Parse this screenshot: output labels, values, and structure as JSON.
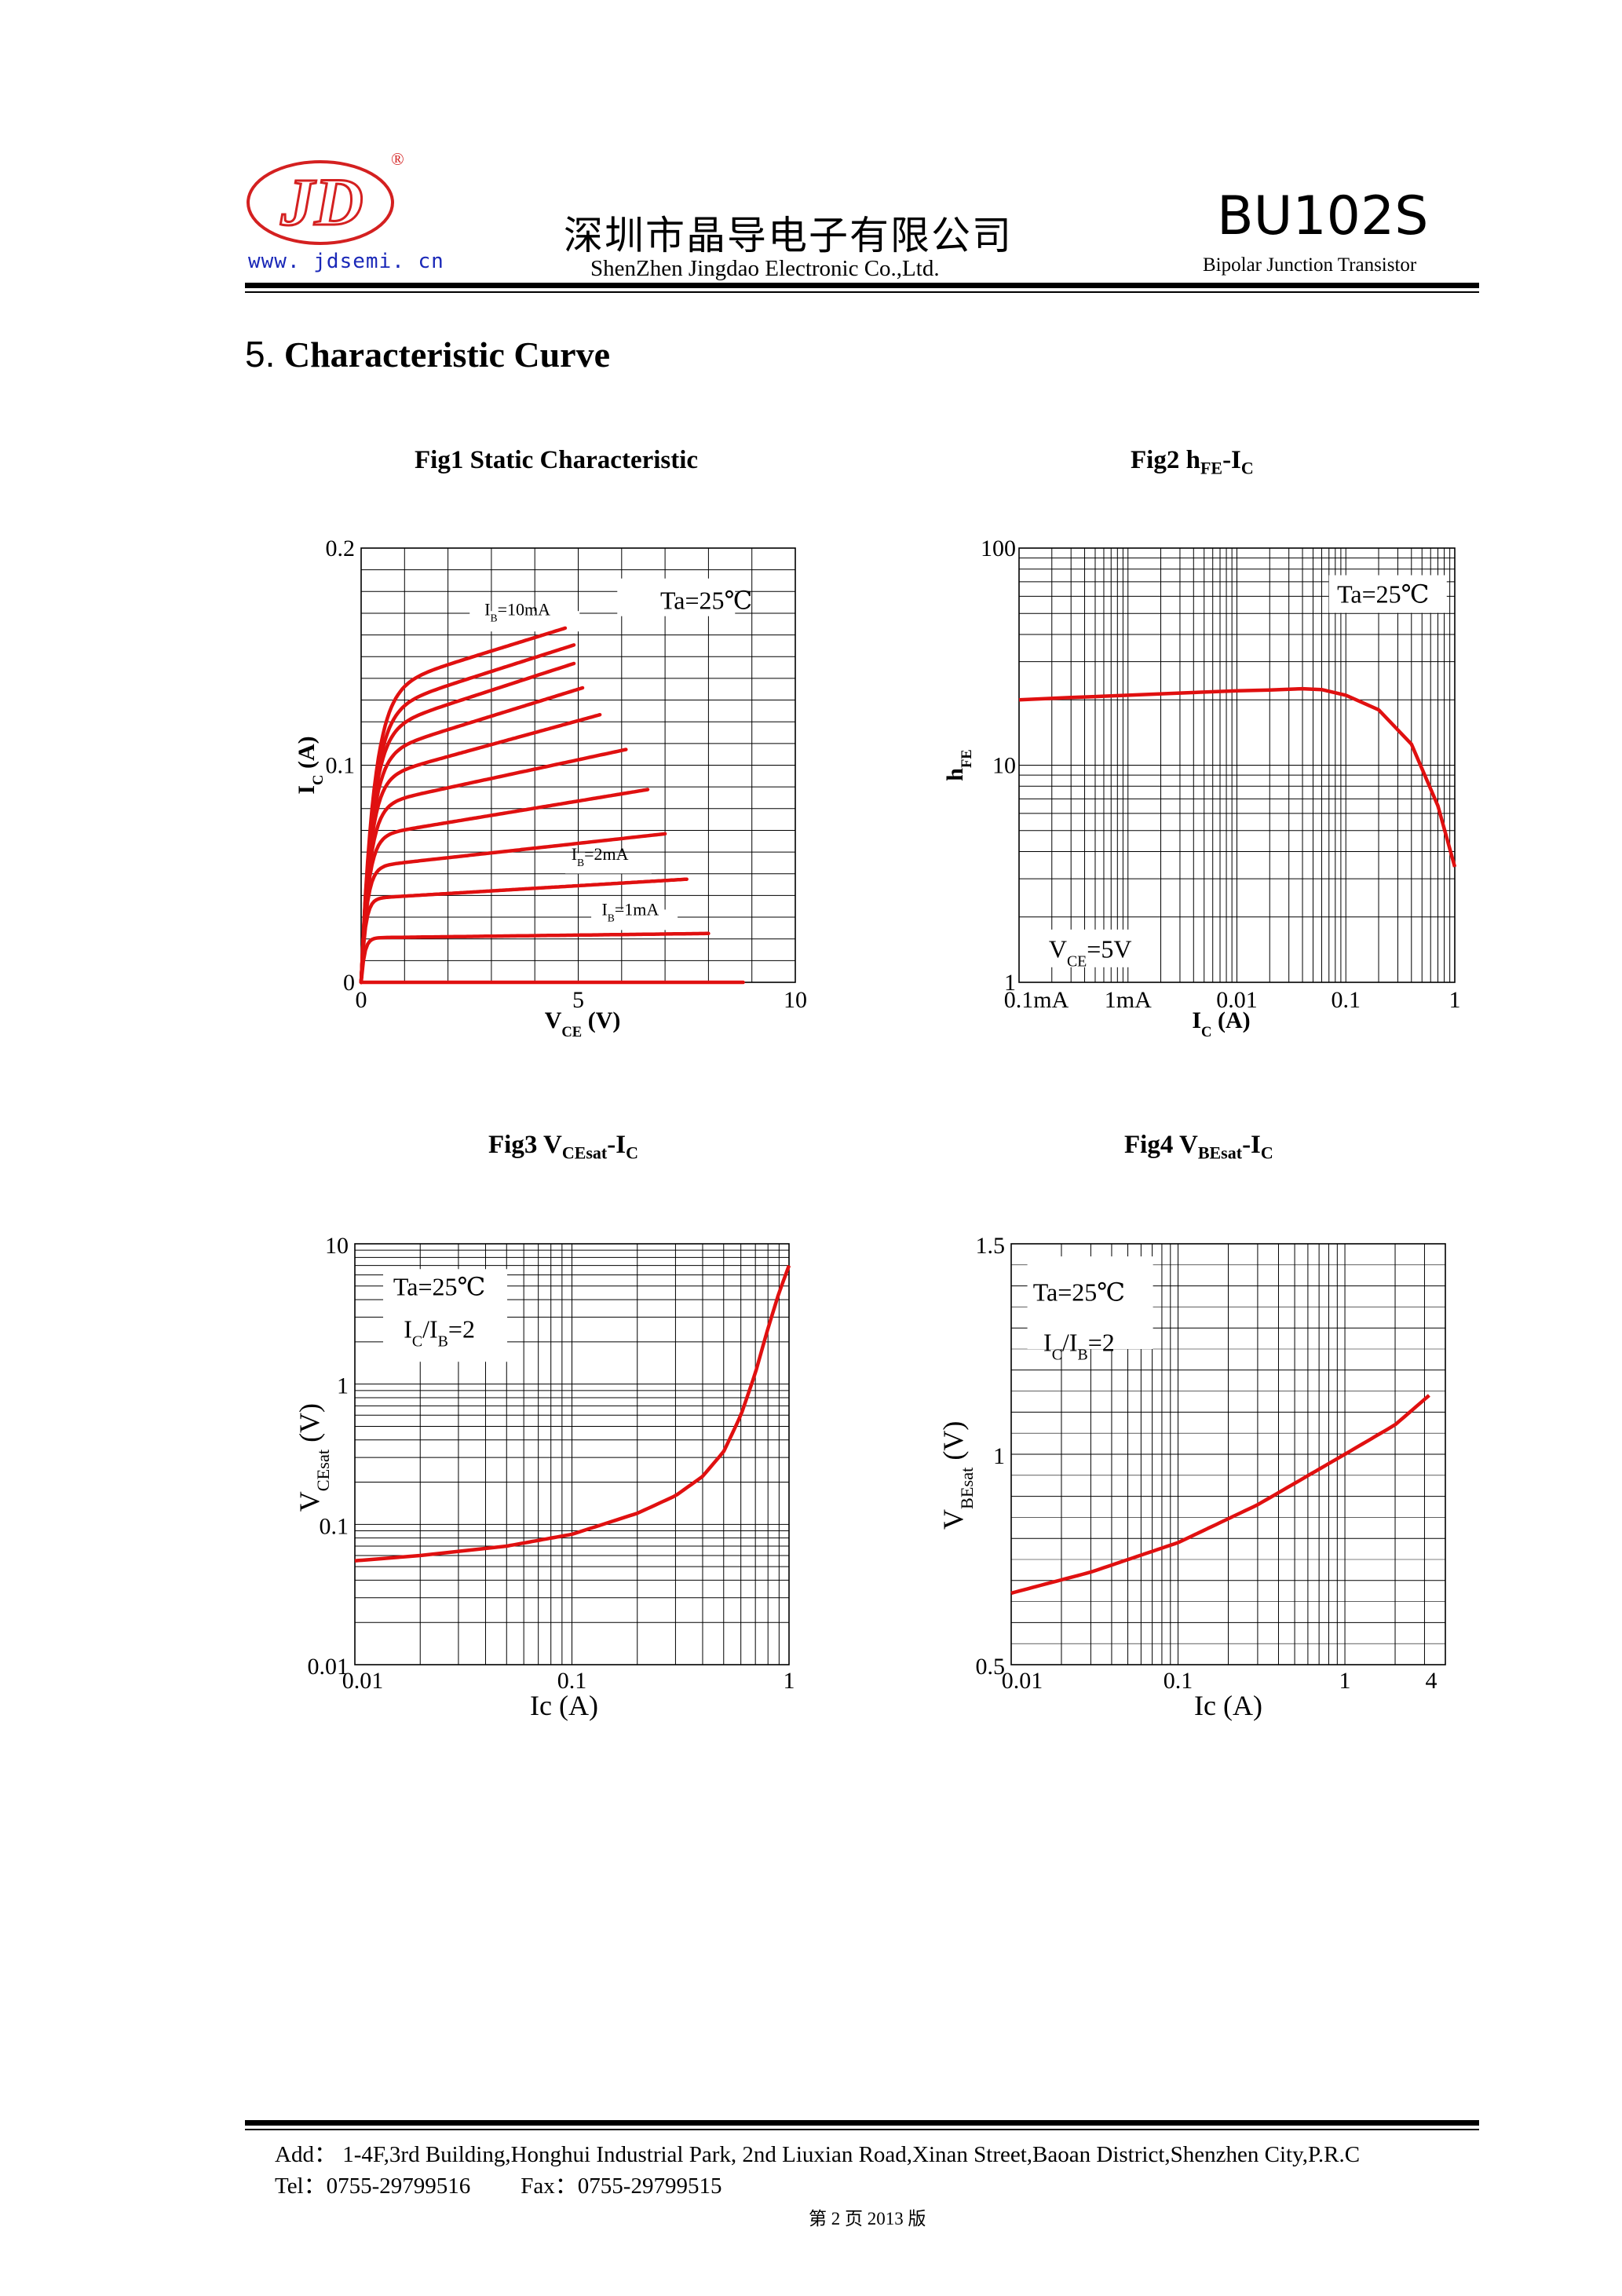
{
  "header": {
    "url": "www. jdsemi. cn",
    "logo_text": "JD",
    "registered_mark": "®",
    "company_cn": "深圳市晶导电子有限公司",
    "company_en": "ShenZhen Jingdao Electronic Co.,Ltd.",
    "part_number": "BU102S",
    "part_type": "Bipolar Junction Transistor",
    "colors": {
      "logo_red": "#d42020",
      "url_blue": "#1a28b8"
    }
  },
  "section": {
    "number": "5.",
    "title": "Characteristic Curve"
  },
  "figures": {
    "fig1_title": "Fig1  Static Characteristic",
    "fig2_title_prefix": "Fig2    h",
    "fig2_title_sub": "FE",
    "fig2_title_suffix": "-I",
    "fig2_title_sub2": "C",
    "fig3_title_prefix": "Fig3  V",
    "fig3_title_sub": "CEsat",
    "fig3_title_suffix": "-I",
    "fig3_title_sub2": "C",
    "fig4_title_prefix": "Fig4  V",
    "fig4_title_sub": "BEsat",
    "fig4_title_suffix": "-I",
    "fig4_title_sub2": "C"
  },
  "chart_data": [
    {
      "id": "fig1",
      "type": "line",
      "title": "Fig1  Static Characteristic",
      "xlabel_main": "V",
      "xlabel_sub": "CE",
      "xlabel_unit": " (V)",
      "ylabel_main": "I",
      "ylabel_sub": "C",
      "ylabel_unit": " (A)",
      "xlim": [
        0,
        10
      ],
      "ylim": [
        0,
        0.2
      ],
      "xticks": [
        0,
        5,
        10
      ],
      "xtick_labels": [
        "0",
        "5",
        "10"
      ],
      "yticks": [
        0,
        0.1,
        0.2
      ],
      "ytick_labels": [
        "0",
        "0.1",
        "0.2"
      ],
      "grid": true,
      "annotation": "Ta=25℃",
      "curve_labels": [
        {
          "main": "I",
          "sub": "B",
          "rest": "=10mA"
        },
        {
          "main": "I",
          "sub": "B",
          "rest": "=2mA"
        },
        {
          "main": "I",
          "sub": "B",
          "rest": "=1mA"
        }
      ],
      "series": [
        {
          "name": "IB=0",
          "x_end": 8.8,
          "sat": 0.0,
          "slope": 0.0,
          "knee": 0.2
        },
        {
          "name": "IB=1mA",
          "x_end": 8.0,
          "sat": 0.0205,
          "slope": 0.00025,
          "knee": 0.25
        },
        {
          "name": "IB=2mA",
          "x_end": 7.5,
          "sat": 0.0385,
          "slope": 0.0012,
          "knee": 0.3
        },
        {
          "name": "IB=3mA",
          "x_end": 7.0,
          "sat": 0.053,
          "slope": 0.0022,
          "knee": 0.4
        },
        {
          "name": "IB=4mA",
          "x_end": 6.6,
          "sat": 0.067,
          "slope": 0.0033,
          "knee": 0.5
        },
        {
          "name": "IB=5mA",
          "x_end": 6.1,
          "sat": 0.081,
          "slope": 0.0043,
          "knee": 0.6
        },
        {
          "name": "IB=6mA",
          "x_end": 5.5,
          "sat": 0.093,
          "slope": 0.0055,
          "knee": 0.65
        },
        {
          "name": "IB=7mA",
          "x_end": 5.1,
          "sat": 0.104,
          "slope": 0.0062,
          "knee": 0.72
        },
        {
          "name": "IB=8mA",
          "x_end": 4.9,
          "sat": 0.115,
          "slope": 0.0065,
          "knee": 0.78
        },
        {
          "name": "IB=9mA",
          "x_end": 4.9,
          "sat": 0.124,
          "slope": 0.0064,
          "knee": 0.85
        },
        {
          "name": "IB=10mA",
          "x_end": 4.7,
          "sat": 0.134,
          "slope": 0.0062,
          "knee": 0.9
        }
      ]
    },
    {
      "id": "fig2",
      "type": "line",
      "title": "Fig2    hFE-IC",
      "xlabel_main": "I",
      "xlabel_sub": "C",
      "xlabel_unit": " (A)",
      "ylabel_main": "h",
      "ylabel_sub": "FE",
      "xscale": "log",
      "yscale": "log",
      "xlim": [
        0.0001,
        1
      ],
      "ylim": [
        1,
        100
      ],
      "xtick_labels": [
        "0.1mA",
        "1mA",
        "0.01",
        "0.1",
        "1"
      ],
      "ytick_labels": [
        "1",
        "10",
        "100"
      ],
      "grid": true,
      "annotation": "Ta=25℃",
      "annotation2_main": "V",
      "annotation2_sub": "CE",
      "annotation2_rest": "=5V",
      "x": [
        0.0001,
        0.0003,
        0.001,
        0.003,
        0.01,
        0.02,
        0.04,
        0.06,
        0.1,
        0.2,
        0.4,
        0.7,
        1
      ],
      "y": [
        20,
        20.5,
        21,
        21.5,
        22,
        22.2,
        22.5,
        22.3,
        21,
        18,
        12.5,
        6.5,
        3.4
      ]
    },
    {
      "id": "fig3",
      "type": "line",
      "title": "Fig3  VCEsat-IC",
      "xlabel": "Ic (A)",
      "ylabel_main": "V",
      "ylabel_sub": "CEsat",
      "ylabel_unit": " (V)",
      "xscale": "log",
      "yscale": "log",
      "xlim": [
        0.01,
        1
      ],
      "ylim": [
        0.01,
        10
      ],
      "xtick_labels": [
        "0.01",
        "0.1",
        "1"
      ],
      "ytick_labels": [
        "0.01",
        "0.1",
        "1",
        "10"
      ],
      "grid": true,
      "annotation": "Ta=25℃",
      "annotation2_main": "I",
      "annotation2_sub": "C",
      "annotation2_mid": "/I",
      "annotation2_sub2": "B",
      "annotation2_rest": "=2",
      "x": [
        0.01,
        0.02,
        0.05,
        0.1,
        0.2,
        0.3,
        0.4,
        0.5,
        0.6,
        0.7,
        0.8,
        0.9,
        1
      ],
      "y": [
        0.055,
        0.06,
        0.07,
        0.085,
        0.12,
        0.16,
        0.22,
        0.33,
        0.6,
        1.2,
        2.5,
        4.5,
        7
      ]
    },
    {
      "id": "fig4",
      "type": "line",
      "title": "Fig4  VBEsat-IC",
      "xlabel": "Ic (A)",
      "ylabel_main": "V",
      "ylabel_sub": "BEsat",
      "ylabel_unit": " (V)",
      "xscale": "log",
      "yscale": "linear",
      "xlim": [
        0.01,
        4
      ],
      "ylim": [
        0.5,
        1.5
      ],
      "xtick_labels": [
        "0.01",
        "0.1",
        "1",
        "4"
      ],
      "ytick_labels": [
        "0.5",
        "1",
        "1.5"
      ],
      "grid": true,
      "annotation": "Ta=25℃",
      "annotation2_main": "I",
      "annotation2_sub": "C",
      "annotation2_mid": "/I",
      "annotation2_sub2": "B",
      "annotation2_rest": "=2",
      "x": [
        0.01,
        0.03,
        0.1,
        0.3,
        1,
        2,
        3.2
      ],
      "y": [
        0.67,
        0.72,
        0.79,
        0.88,
        1.0,
        1.07,
        1.14
      ]
    }
  ],
  "footer": {
    "address": "Add：  1-4F,3rd Building,Honghui Industrial Park, 2nd Liuxian Road,Xinan Street,Baoan District,Shenzhen City,P.R.C",
    "tel": "Tel：0755-29799516",
    "fax": "Fax：0755-29799515",
    "page": "第 2 页    2013 版"
  }
}
